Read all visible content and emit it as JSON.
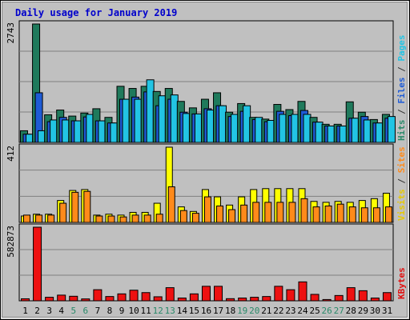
{
  "chart_data": {
    "type": "bar",
    "title": "Daily usage for January 2019",
    "categories": [
      "1",
      "2",
      "3",
      "4",
      "5",
      "6",
      "7",
      "8",
      "9",
      "10",
      "11",
      "12",
      "13",
      "14",
      "15",
      "16",
      "17",
      "18",
      "19",
      "20",
      "21",
      "22",
      "23",
      "24",
      "25",
      "26",
      "27",
      "28",
      "29",
      "30",
      "31"
    ],
    "weekend_days": [
      "5",
      "6",
      "12",
      "13",
      "19",
      "20",
      "26",
      "27"
    ],
    "panels": [
      {
        "name": "top",
        "axis_max_label": "2743",
        "ymax": 2743,
        "right_labels": [
          {
            "text": "Hits",
            "color": "#2a8a6a"
          },
          {
            "text": " / ",
            "color": "#333333"
          },
          {
            "text": "Files",
            "color": "#1e5bd6"
          },
          {
            "text": " / ",
            "color": "#333333"
          },
          {
            "text": "Pages",
            "color": "#22c4e4"
          }
        ],
        "series": [
          {
            "name": "Hits",
            "color": "#1f7a5c",
            "values": [
              270,
              2743,
              640,
              750,
              610,
              680,
              780,
              580,
              1300,
              1250,
              1300,
              1180,
              1250,
              950,
              800,
              1000,
              1150,
              700,
              900,
              580,
              540,
              880,
              760,
              950,
              580,
              420,
              420,
              940,
              700,
              530,
              650
            ]
          },
          {
            "name": "Files",
            "color": "#1e5bd6",
            "values": [
              190,
              1150,
              480,
              580,
              500,
              590,
              500,
              450,
              1000,
              1050,
              1170,
              850,
              1000,
              700,
              660,
              780,
              850,
              600,
              720,
              530,
              480,
              720,
              620,
              740,
              470,
              380,
              380,
              560,
              600,
              450,
              560
            ]
          },
          {
            "name": "Pages",
            "color": "#22c4e4",
            "values": [
              190,
              270,
              520,
              520,
              500,
              650,
              500,
              450,
              1000,
              1000,
              1450,
              1080,
              1100,
              670,
              660,
              750,
              850,
              650,
              850,
              580,
              510,
              650,
              650,
              650,
              470,
              380,
              380,
              560,
              520,
              450,
              600
            ]
          }
        ]
      },
      {
        "name": "middle",
        "axis_max_label": "412",
        "ymax": 412,
        "right_labels": [
          {
            "text": "Visits",
            "color": "#e6c800"
          },
          {
            "text": " / ",
            "color": "#333333"
          },
          {
            "text": "Sites",
            "color": "#ff8a1a"
          }
        ],
        "series": [
          {
            "name": "Visits",
            "color": "#ffff00",
            "values": [
              35,
              45,
              45,
              120,
              175,
              180,
              40,
              45,
              40,
              55,
              55,
              105,
              412,
              85,
              60,
              180,
              140,
              95,
              140,
              180,
              185,
              185,
              185,
              185,
              115,
              110,
              115,
              110,
              120,
              130,
              160
            ]
          },
          {
            "name": "Sites",
            "color": "#ff8a1a",
            "values": [
              40,
              40,
              40,
              105,
              165,
              170,
              35,
              35,
              30,
              40,
              40,
              45,
              195,
              65,
              50,
              140,
              90,
              70,
              95,
              110,
              110,
              110,
              110,
              130,
              85,
              90,
              100,
              85,
              80,
              80,
              85
            ]
          }
        ]
      },
      {
        "name": "bottom",
        "axis_max_label": "582873",
        "ymax": 582873,
        "right_labels": [
          {
            "text": "KBytes",
            "color": "#e01010"
          }
        ],
        "series": [
          {
            "name": "KBytes",
            "color": "#ee1111",
            "values": [
              16000,
              582873,
              28000,
              45000,
              36000,
              15000,
              88000,
              34000,
              55000,
              84000,
              65000,
              32000,
              104000,
              22000,
              55000,
              115000,
              115000,
              17000,
              22000,
              28000,
              34000,
              115000,
              88000,
              150000,
              51000,
              10000,
              42000,
              104000,
              80000,
              22000,
              65000
            ]
          }
        ]
      }
    ]
  }
}
